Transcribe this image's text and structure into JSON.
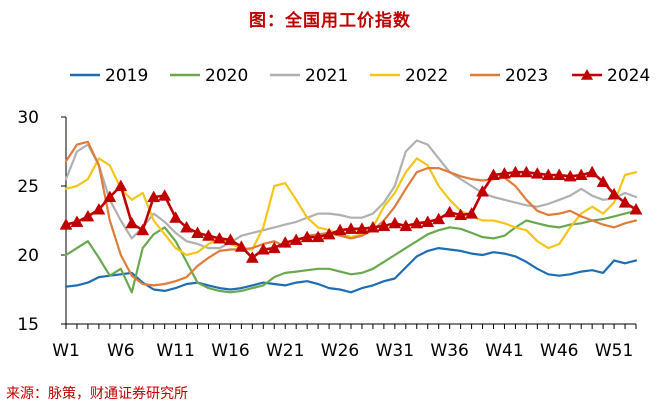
{
  "title": "图：全国用工价指数",
  "source": "来源：脉策，财通证券研究所",
  "chart_data": {
    "type": "line",
    "title": "图：全国用工价指数",
    "ylim": [
      15,
      30
    ],
    "yticks": [
      15,
      20,
      25,
      30
    ],
    "xticks": [
      "W1",
      "W6",
      "W11",
      "W16",
      "W21",
      "W26",
      "W31",
      "W36",
      "W41",
      "W46",
      "W51"
    ],
    "x_weeks": [
      1,
      2,
      3,
      4,
      5,
      6,
      7,
      8,
      9,
      10,
      11,
      12,
      13,
      14,
      15,
      16,
      17,
      18,
      19,
      20,
      21,
      22,
      23,
      24,
      25,
      26,
      27,
      28,
      29,
      30,
      31,
      32,
      33,
      34,
      35,
      36,
      37,
      38,
      39,
      40,
      41,
      42,
      43,
      44,
      45,
      46,
      47,
      48,
      49,
      50,
      51,
      52,
      53
    ],
    "legend_position": "top",
    "series": [
      {
        "name": "2019",
        "color": "#1f6eb4",
        "marker": "none",
        "values": [
          17.7,
          17.8,
          18.0,
          18.4,
          18.5,
          18.6,
          18.7,
          18.0,
          17.5,
          17.4,
          17.6,
          17.9,
          18.0,
          17.8,
          17.6,
          17.5,
          17.6,
          17.8,
          18.0,
          17.9,
          17.8,
          18.0,
          18.1,
          17.9,
          17.6,
          17.5,
          17.3,
          17.6,
          17.8,
          18.1,
          18.3,
          19.1,
          19.9,
          20.3,
          20.5,
          20.4,
          20.3,
          20.1,
          20.0,
          20.2,
          20.1,
          19.9,
          19.5,
          19.0,
          18.6,
          18.5,
          18.6,
          18.8,
          18.9,
          18.7,
          19.6,
          19.4,
          19.6
        ]
      },
      {
        "name": "2020",
        "color": "#6aa84f",
        "marker": "none",
        "values": [
          20.0,
          20.5,
          21.0,
          19.8,
          18.5,
          19.0,
          17.3,
          20.5,
          21.5,
          22.0,
          21.0,
          19.5,
          18.0,
          17.6,
          17.4,
          17.3,
          17.4,
          17.6,
          17.8,
          18.4,
          18.7,
          18.8,
          18.9,
          19.0,
          19.0,
          18.8,
          18.6,
          18.7,
          19.0,
          19.5,
          20.0,
          20.5,
          21.0,
          21.5,
          21.8,
          22.0,
          21.9,
          21.6,
          21.3,
          21.2,
          21.4,
          22.0,
          22.5,
          22.3,
          22.1,
          22.0,
          22.2,
          22.3,
          22.5,
          22.6,
          22.8,
          23.0,
          23.2
        ]
      },
      {
        "name": "2021",
        "color": "#b0b0b0",
        "marker": "none",
        "values": [
          25.5,
          27.5,
          28.0,
          26.5,
          24.0,
          22.5,
          21.2,
          22.0,
          23.0,
          22.4,
          21.6,
          21.0,
          20.8,
          20.5,
          20.5,
          20.9,
          21.4,
          21.6,
          21.8,
          22.0,
          22.2,
          22.4,
          22.7,
          23.0,
          23.0,
          22.9,
          22.7,
          22.7,
          23.0,
          23.8,
          25.0,
          27.5,
          28.3,
          28.0,
          27.0,
          26.0,
          25.5,
          25.0,
          24.5,
          24.2,
          24.0,
          23.8,
          23.6,
          23.5,
          23.7,
          24.0,
          24.3,
          24.8,
          24.3,
          24.0,
          24.1,
          24.5,
          24.2
        ]
      },
      {
        "name": "2022",
        "color": "#f5c518",
        "marker": "none",
        "values": [
          24.8,
          25.0,
          25.5,
          27.0,
          26.5,
          24.8,
          24.0,
          24.5,
          22.5,
          21.5,
          20.5,
          20.0,
          20.2,
          20.8,
          21.2,
          20.8,
          20.5,
          20.4,
          22.0,
          25.0,
          25.2,
          24.0,
          22.7,
          22.0,
          21.8,
          21.5,
          21.3,
          21.5,
          22.0,
          23.5,
          24.5,
          26.0,
          27.0,
          26.5,
          25.0,
          24.0,
          23.2,
          22.8,
          22.5,
          22.5,
          22.3,
          22.0,
          21.8,
          21.0,
          20.5,
          20.8,
          22.0,
          23.0,
          23.5,
          23.0,
          23.8,
          25.8,
          26.0
        ]
      },
      {
        "name": "2023",
        "color": "#e07b39",
        "marker": "none",
        "values": [
          26.8,
          28.0,
          28.2,
          26.5,
          22.5,
          20.0,
          18.5,
          17.9,
          17.8,
          17.9,
          18.1,
          18.4,
          19.2,
          19.8,
          20.3,
          20.4,
          20.4,
          20.5,
          20.8,
          21.0,
          20.6,
          21.0,
          21.4,
          21.5,
          21.6,
          21.4,
          21.2,
          21.4,
          21.8,
          22.5,
          23.5,
          24.8,
          26.0,
          26.3,
          26.3,
          26.0,
          25.7,
          25.5,
          25.4,
          25.5,
          25.6,
          25.0,
          24.0,
          23.2,
          22.9,
          23.0,
          23.2,
          22.8,
          22.5,
          22.2,
          22.0,
          22.3,
          22.5
        ]
      },
      {
        "name": "2024",
        "color": "#c00000",
        "marker": "triangle",
        "values": [
          22.2,
          22.4,
          22.8,
          23.3,
          24.2,
          25.0,
          22.3,
          21.8,
          24.2,
          24.3,
          22.7,
          22.0,
          21.6,
          21.4,
          21.2,
          21.1,
          20.6,
          19.8,
          20.4,
          20.5,
          20.9,
          21.1,
          21.3,
          21.3,
          21.5,
          21.8,
          21.9,
          21.9,
          22.0,
          22.1,
          22.3,
          22.1,
          22.3,
          22.4,
          22.6,
          23.1,
          22.9,
          23.0,
          24.6,
          25.8,
          25.9,
          26.0,
          26.0,
          25.9,
          25.8,
          25.8,
          25.7,
          25.8,
          26.0,
          25.3,
          24.4,
          23.8,
          23.3
        ]
      }
    ]
  }
}
